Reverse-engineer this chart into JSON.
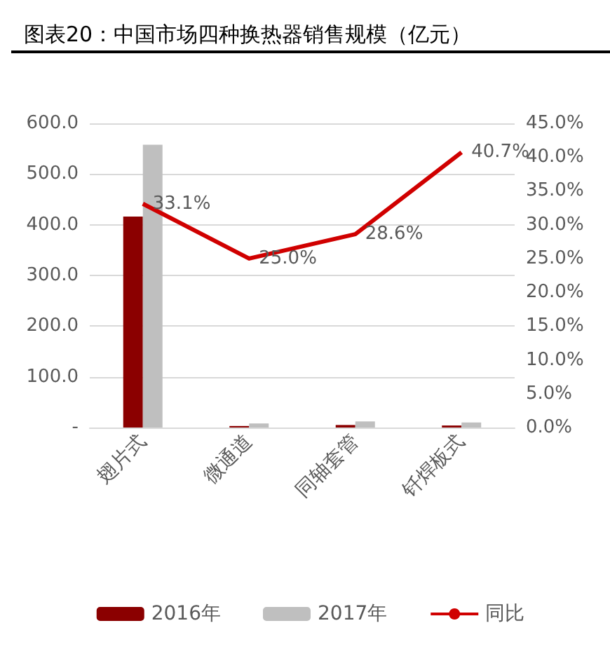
{
  "chart_data": {
    "type": "bar",
    "title": "图表20：中国市场四种换热器销售规模（亿元）",
    "categories": [
      "翅片式",
      "微通道",
      "同轴套管",
      "钎焊板式"
    ],
    "series": [
      {
        "name": "2016年",
        "color": "#8b0000",
        "values": [
          416,
          3,
          5,
          4
        ]
      },
      {
        "name": "2017年",
        "color": "#bfbfbf",
        "values": [
          558,
          8,
          12,
          10
        ]
      },
      {
        "name": "同比",
        "type": "line",
        "axis": "y2",
        "color": "#d00000",
        "values": [
          33.1,
          25.0,
          28.6,
          40.7
        ],
        "value_labels": [
          "33.1%",
          "25.0%",
          "28.6%",
          "40.7%"
        ]
      }
    ],
    "ylim": [
      0,
      600
    ],
    "yticks": [
      {
        "value": 0,
        "label": "-"
      },
      {
        "value": 100,
        "label": "100.0"
      },
      {
        "value": 200,
        "label": "200.0"
      },
      {
        "value": 300,
        "label": "300.0"
      },
      {
        "value": 400,
        "label": "400.0"
      },
      {
        "value": 500,
        "label": "500.0"
      },
      {
        "value": 600,
        "label": "600.0"
      }
    ],
    "y2lim": [
      0,
      45
    ],
    "y2ticks": [
      {
        "value": 0,
        "label": "0.0%"
      },
      {
        "value": 5,
        "label": "5.0%"
      },
      {
        "value": 10,
        "label": "10.0%"
      },
      {
        "value": 15,
        "label": "15.0%"
      },
      {
        "value": 20,
        "label": "20.0%"
      },
      {
        "value": 25,
        "label": "25.0%"
      },
      {
        "value": 30,
        "label": "30.0%"
      },
      {
        "value": 35,
        "label": "35.0%"
      },
      {
        "value": 40,
        "label": "40.0%"
      },
      {
        "value": 45,
        "label": "45.0%"
      }
    ],
    "grid": "y",
    "legend": "bottom",
    "marker": "none",
    "line_style": "solid"
  }
}
